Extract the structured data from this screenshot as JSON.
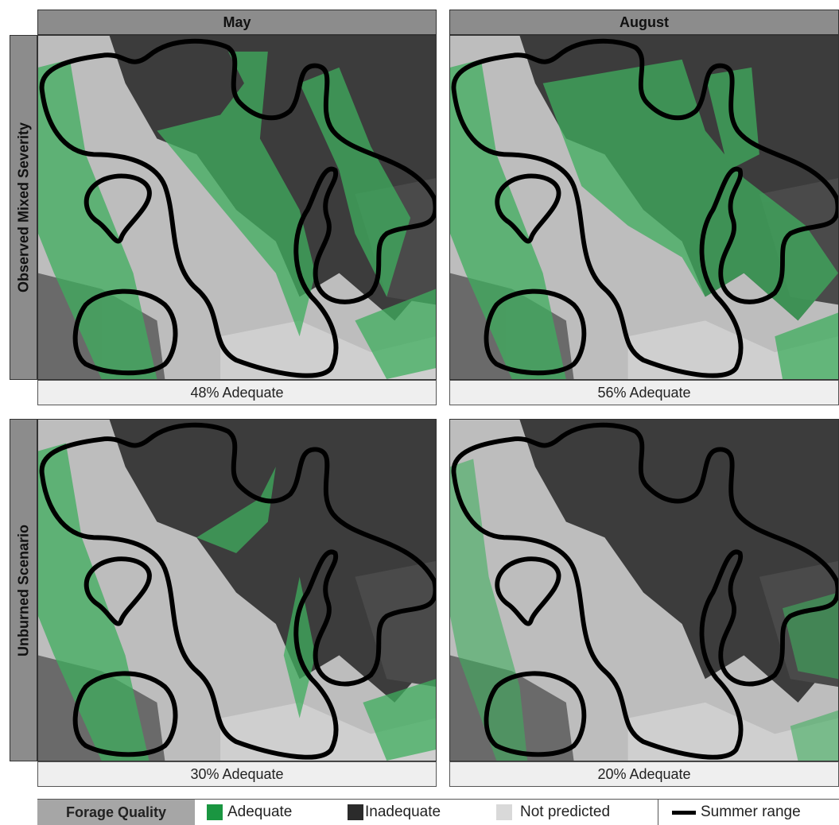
{
  "columns": [
    "May",
    "August"
  ],
  "rows": [
    "Observed Mixed Severity",
    "Unburned Scenario"
  ],
  "panels": [
    [
      "48% Adequate",
      "56% Adequate"
    ],
    [
      "30% Adequate",
      "20% Adequate"
    ]
  ],
  "legend": {
    "title": "Forage Quality",
    "items": [
      "Adequate",
      "Inadequate",
      "Not predicted",
      "Summer range"
    ]
  }
}
